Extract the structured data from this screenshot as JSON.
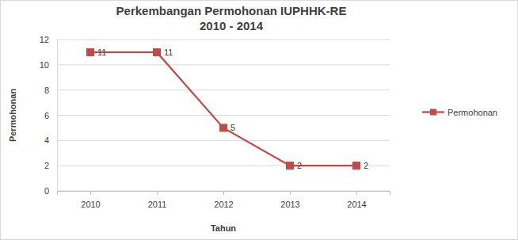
{
  "chart_data": {
    "type": "line",
    "title": "Perkembangan Permohonan IUPHHK-RE\n2010 - 2014",
    "x_label": "Tahun",
    "y_label": "Permohonan",
    "categories": [
      "2010",
      "2011",
      "2012",
      "2013",
      "2014"
    ],
    "series": [
      {
        "name": "Permohonan",
        "color": "#be4b48",
        "marker": "square",
        "values": [
          11,
          11,
          5,
          2,
          2
        ]
      }
    ],
    "ylim": [
      0,
      12
    ],
    "yticks": [
      0,
      2,
      4,
      6,
      8,
      10,
      12
    ],
    "grid": true,
    "data_labels": true,
    "legend": "right"
  }
}
